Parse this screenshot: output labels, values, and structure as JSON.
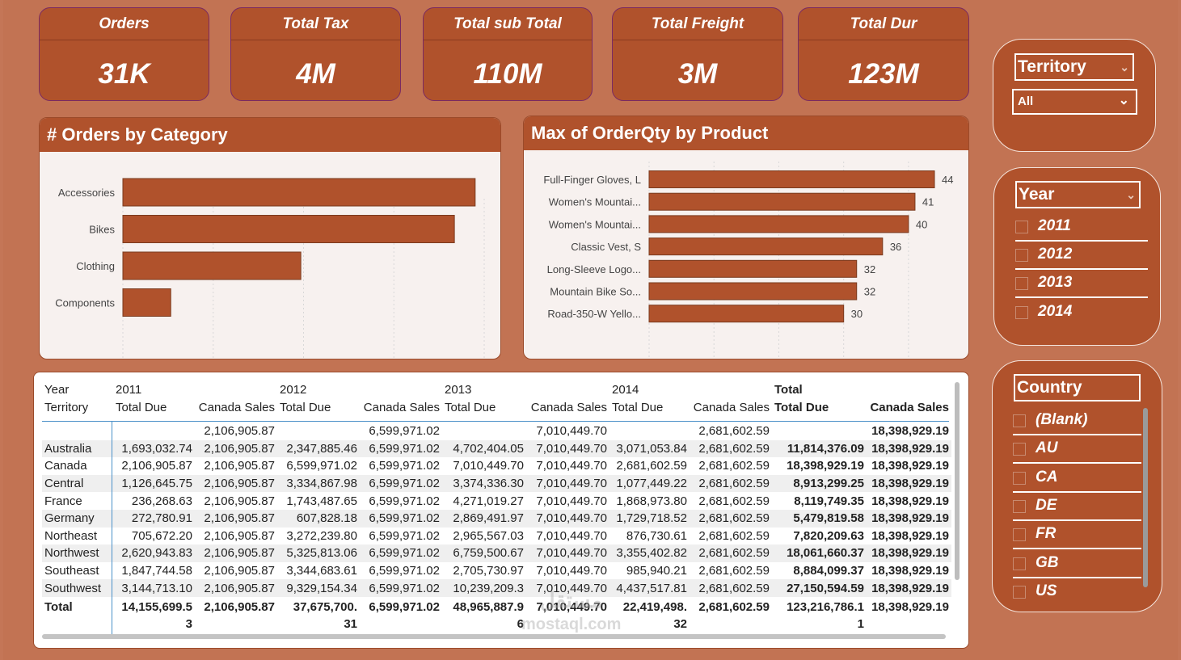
{
  "kpis": [
    {
      "title": "Orders",
      "value": "31K"
    },
    {
      "title": "Total Tax",
      "value": "4M"
    },
    {
      "title": "Total sub Total",
      "value": "110M"
    },
    {
      "title": "Total Freight",
      "value": "3M"
    },
    {
      "title": "Total Dur",
      "value": "123M"
    }
  ],
  "chart_data": [
    {
      "type": "bar",
      "orientation": "horizontal",
      "title": "# Orders by Category",
      "categories": [
        "Accessories",
        "Bikes",
        "Clothing",
        "Components"
      ],
      "values": [
        19500,
        18350,
        9850,
        2650
      ],
      "xlim": [
        0,
        20000
      ],
      "x_ticks": [
        "0K",
        "5K",
        "10K",
        "15K",
        "20K"
      ],
      "color": "#b0522c",
      "grid": true
    },
    {
      "type": "bar",
      "orientation": "horizontal",
      "title": "Max of OrderQty by Product",
      "categories": [
        "Full-Finger Gloves, L",
        "Women's Mountai...",
        "Women's Mountai...",
        "Classic Vest, S",
        "Long-Sleeve Logo...",
        "Mountain Bike So...",
        "Road-350-W Yello..."
      ],
      "values": [
        44,
        41,
        40,
        36,
        32,
        32,
        30
      ],
      "data_labels": [
        "44",
        "41",
        "40",
        "36",
        "32",
        "32",
        "30"
      ],
      "xlim": [
        0,
        44
      ],
      "x_ticks": [
        "0",
        "10",
        "20",
        "30",
        "40"
      ],
      "color": "#b0522c",
      "grid": true
    }
  ],
  "slicers": {
    "territory": {
      "title": "Territory",
      "selected": "All"
    },
    "year": {
      "title": "Year",
      "options": [
        "2011",
        "2012",
        "2013",
        "2014"
      ]
    },
    "country": {
      "title": "Country",
      "options": [
        "(Blank)",
        "AU",
        "CA",
        "DE",
        "FR",
        "GB",
        "US"
      ]
    }
  },
  "table": {
    "header_row1": [
      "Year",
      "2011",
      "",
      "2012",
      "",
      "2013",
      "",
      "2014",
      "",
      "Total",
      ""
    ],
    "header_row2": [
      "Territory",
      "Total Due",
      "Canada Sales",
      "Total Due",
      "Canada Sales",
      "Total Due",
      "Canada Sales",
      "Total Due",
      "Canada Sales",
      "Total Due",
      "Canada Sales"
    ],
    "rows": [
      [
        "",
        "",
        "2,106,905.87",
        "",
        "6,599,971.02",
        "",
        "7,010,449.70",
        "",
        "2,681,602.59",
        "",
        "18,398,929.19"
      ],
      [
        "Australia",
        "1,693,032.74",
        "2,106,905.87",
        "2,347,885.46",
        "6,599,971.02",
        "4,702,404.05",
        "7,010,449.70",
        "3,071,053.84",
        "2,681,602.59",
        "11,814,376.09",
        "18,398,929.19"
      ],
      [
        "Canada",
        "2,106,905.87",
        "2,106,905.87",
        "6,599,971.02",
        "6,599,971.02",
        "7,010,449.70",
        "7,010,449.70",
        "2,681,602.59",
        "2,681,602.59",
        "18,398,929.19",
        "18,398,929.19"
      ],
      [
        "Central",
        "1,126,645.75",
        "2,106,905.87",
        "3,334,867.98",
        "6,599,971.02",
        "3,374,336.30",
        "7,010,449.70",
        "1,077,449.22",
        "2,681,602.59",
        "8,913,299.25",
        "18,398,929.19"
      ],
      [
        "France",
        "236,268.63",
        "2,106,905.87",
        "1,743,487.65",
        "6,599,971.02",
        "4,271,019.27",
        "7,010,449.70",
        "1,868,973.80",
        "2,681,602.59",
        "8,119,749.35",
        "18,398,929.19"
      ],
      [
        "Germany",
        "272,780.91",
        "2,106,905.87",
        "607,828.18",
        "6,599,971.02",
        "2,869,491.97",
        "7,010,449.70",
        "1,729,718.52",
        "2,681,602.59",
        "5,479,819.58",
        "18,398,929.19"
      ],
      [
        "Northeast",
        "705,672.20",
        "2,106,905.87",
        "3,272,239.80",
        "6,599,971.02",
        "2,965,567.03",
        "7,010,449.70",
        "876,730.61",
        "2,681,602.59",
        "7,820,209.63",
        "18,398,929.19"
      ],
      [
        "Northwest",
        "2,620,943.83",
        "2,106,905.87",
        "5,325,813.06",
        "6,599,971.02",
        "6,759,500.67",
        "7,010,449.70",
        "3,355,402.82",
        "2,681,602.59",
        "18,061,660.37",
        "18,398,929.19"
      ],
      [
        "Southeast",
        "1,847,744.58",
        "2,106,905.87",
        "3,344,683.61",
        "6,599,971.02",
        "2,705,730.97",
        "7,010,449.70",
        "985,940.21",
        "2,681,602.59",
        "8,884,099.37",
        "18,398,929.19"
      ],
      [
        "Southwest",
        "3,144,713.10",
        "2,106,905.87",
        "9,329,154.34",
        "6,599,971.02",
        "10,239,209.3",
        "7,010,449.70",
        "4,437,517.81",
        "2,681,602.59",
        "27,150,594.59",
        "18,398,929.19"
      ]
    ],
    "total_row_line1": [
      "Total",
      "14,155,699.5",
      "2,106,905.87",
      "37,675,700.",
      "6,599,971.02",
      "48,965,887.9",
      "7,010,449.70",
      "22,419,498.",
      "2,681,602.59",
      "123,216,786.1",
      "18,398,929.19"
    ],
    "total_row_line2": [
      "",
      "3",
      "",
      "31",
      "",
      "6",
      "",
      "32",
      "",
      "1",
      ""
    ]
  },
  "watermark": {
    "line1": "مستقل",
    "line2": "mostaql.com"
  }
}
